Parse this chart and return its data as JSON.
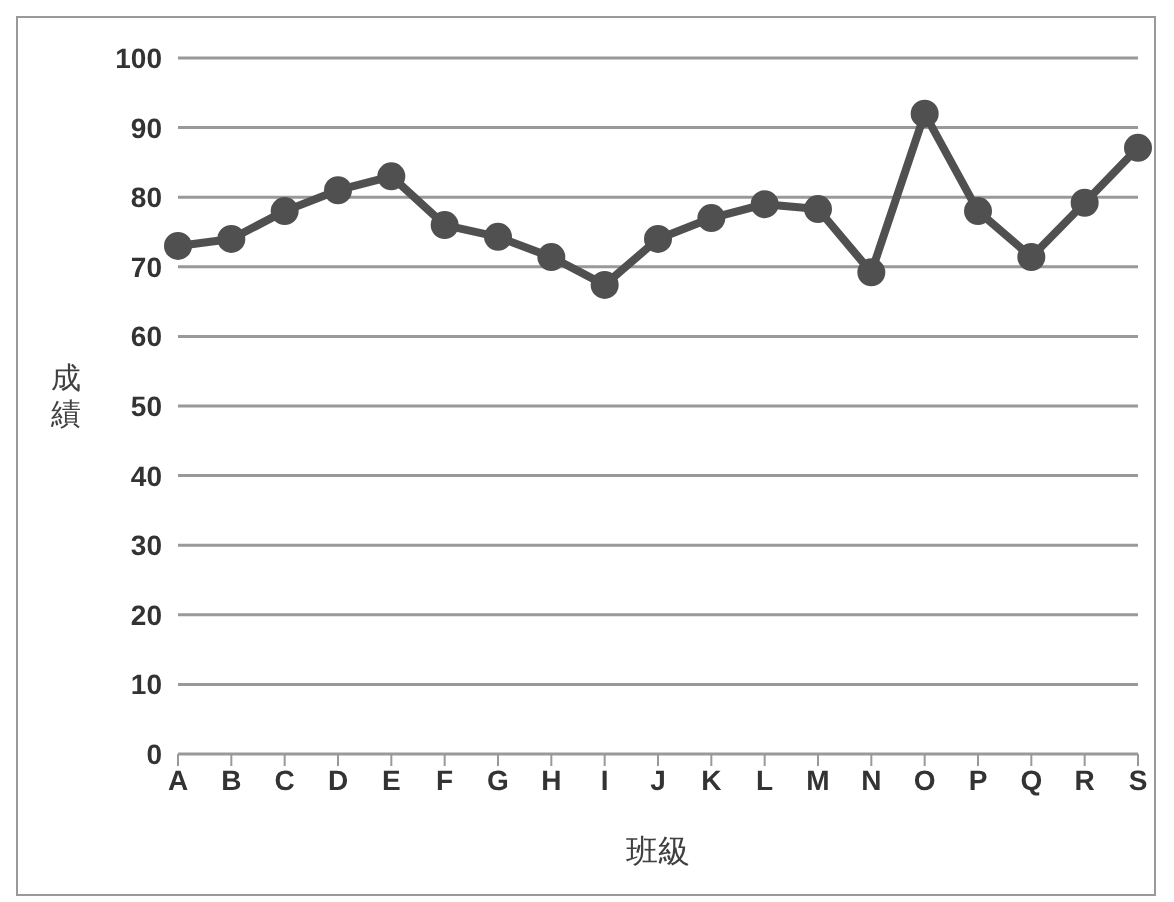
{
  "chart_data": {
    "type": "line",
    "xlabel": "班級",
    "ylabel": "成績",
    "categories": [
      "A",
      "B",
      "C",
      "D",
      "E",
      "F",
      "G",
      "H",
      "I",
      "J",
      "K",
      "L",
      "M",
      "N",
      "O",
      "P",
      "Q",
      "R",
      "S"
    ],
    "series": [
      {
        "color": "#505050",
        "values": [
          73,
          74,
          78,
          81,
          83,
          76,
          74.3,
          71.4,
          67.4,
          74,
          77,
          79,
          78.3,
          69.2,
          92,
          78,
          71.4,
          79.2,
          87.1
        ]
      }
    ],
    "ylim": [
      0,
      100
    ],
    "yticks": [
      0,
      10,
      20,
      30,
      40,
      50,
      60,
      70,
      80,
      90,
      100
    ],
    "grid": "y",
    "marker": "circle",
    "line_style": "solid"
  }
}
